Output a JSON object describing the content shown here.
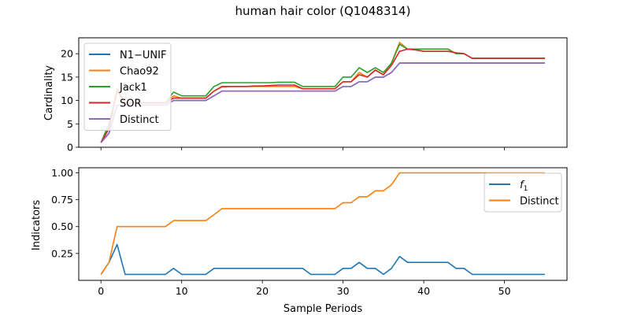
{
  "figure": {
    "title": "human hair color (Q1048314)"
  },
  "chart_data": [
    {
      "type": "line",
      "ylabel": "Cardinality",
      "xlabel": "",
      "xlim": [
        -2.75,
        57.75
      ],
      "ylim": [
        0,
        23.4
      ],
      "xticks": [
        0,
        10,
        20,
        30,
        40,
        50
      ],
      "yticks": [
        0,
        5,
        10,
        15,
        20
      ],
      "legend_position": "upper-left",
      "x": [
        0,
        1,
        2,
        3,
        4,
        5,
        6,
        7,
        8,
        9,
        10,
        11,
        12,
        13,
        14,
        15,
        16,
        17,
        18,
        19,
        20,
        21,
        22,
        23,
        24,
        25,
        26,
        27,
        28,
        29,
        30,
        31,
        32,
        33,
        34,
        35,
        36,
        37,
        38,
        39,
        40,
        41,
        42,
        43,
        44,
        45,
        46,
        47,
        48,
        49,
        50,
        51,
        52,
        53,
        54,
        55
      ],
      "series": [
        {
          "name": "N1−UNIF",
          "color": "#1f77b4",
          "values": [
            1,
            3,
            9,
            9,
            9,
            9,
            9,
            9,
            9,
            10,
            10,
            10,
            10,
            10,
            11,
            12,
            12,
            12,
            12,
            12,
            12,
            12,
            12,
            12,
            12,
            12,
            12,
            12,
            12,
            12,
            13,
            13,
            14,
            14,
            15,
            15,
            16,
            18,
            18,
            18,
            18,
            18,
            18,
            18,
            18,
            18,
            18,
            18,
            18,
            18,
            18,
            18,
            18,
            18,
            18,
            18
          ]
        },
        {
          "name": "Chao92",
          "color": "#ff7f0e",
          "values": [
            1,
            4,
            12.5,
            9.5,
            9.5,
            9.5,
            9.5,
            9.5,
            9.5,
            11,
            10.5,
            10.5,
            10.5,
            10.5,
            12,
            12.9,
            13,
            13,
            13,
            13,
            13,
            13,
            13,
            13,
            13,
            12.5,
            12.5,
            12.5,
            12.5,
            12.5,
            14,
            14,
            16,
            15,
            16.5,
            15.5,
            18,
            22.4,
            21,
            21,
            21,
            21,
            21,
            21,
            20,
            20,
            19,
            19,
            19,
            19,
            19,
            19,
            19,
            19,
            19,
            19
          ]
        },
        {
          "name": "Jack1",
          "color": "#2ca02c",
          "values": [
            1,
            5,
            12,
            9.5,
            9.5,
            9.5,
            9.5,
            9.5,
            9.5,
            11.8,
            11,
            11,
            11,
            11,
            13,
            13.8,
            13.8,
            13.8,
            13.8,
            13.8,
            13.8,
            13.8,
            13.9,
            13.9,
            13.9,
            13,
            13,
            13,
            13,
            13,
            15,
            15,
            17,
            16,
            17,
            16,
            18,
            22,
            21,
            21,
            21,
            21,
            21,
            21,
            20,
            20,
            19,
            19,
            19,
            19,
            19,
            19,
            19,
            19,
            19,
            19
          ]
        },
        {
          "name": "SOR",
          "color": "#d62728",
          "values": [
            1,
            4,
            12,
            9.5,
            9.5,
            9.5,
            9.5,
            9.5,
            9.5,
            10.5,
            10.5,
            10.5,
            10.5,
            10.5,
            12,
            13,
            13,
            13,
            13,
            13.1,
            13.1,
            13.2,
            13.3,
            13.3,
            13.3,
            12.5,
            12.5,
            12.5,
            12.5,
            12.5,
            14,
            14,
            15.5,
            15,
            16.5,
            15.5,
            17.5,
            20.5,
            21,
            20.8,
            20.5,
            20.5,
            20.5,
            20.5,
            20.2,
            20,
            19,
            19,
            19,
            19,
            19,
            19,
            19,
            19,
            19,
            19
          ]
        },
        {
          "name": "Distinct",
          "color": "#9467bd",
          "values": [
            1,
            3,
            9,
            9,
            9,
            9,
            9,
            9,
            9,
            10,
            10,
            10,
            10,
            10,
            11,
            12,
            12,
            12,
            12,
            12,
            12,
            12,
            12,
            12,
            12,
            12,
            12,
            12,
            12,
            12,
            13,
            13,
            14,
            14,
            15,
            15,
            16,
            18,
            18,
            18,
            18,
            18,
            18,
            18,
            18,
            18,
            18,
            18,
            18,
            18,
            18,
            18,
            18,
            18,
            18,
            18
          ]
        }
      ]
    },
    {
      "type": "line",
      "ylabel": "Indicators",
      "xlabel": "Sample Periods",
      "xlim": [
        -2.75,
        57.75
      ],
      "ylim": [
        0.0,
        1.0475
      ],
      "xticks": [
        0,
        10,
        20,
        30,
        40,
        50
      ],
      "yticks": [
        0.25,
        0.5,
        0.75,
        1.0
      ],
      "ytick_labels": [
        "0.25",
        "0.50",
        "0.75",
        "1.00"
      ],
      "legend_position": "upper-right",
      "x": [
        0,
        1,
        2,
        3,
        4,
        5,
        6,
        7,
        8,
        9,
        10,
        11,
        12,
        13,
        14,
        15,
        16,
        17,
        18,
        19,
        20,
        21,
        22,
        23,
        24,
        25,
        26,
        27,
        28,
        29,
        30,
        31,
        32,
        33,
        34,
        35,
        36,
        37,
        38,
        39,
        40,
        41,
        42,
        43,
        44,
        45,
        46,
        47,
        48,
        49,
        50,
        51,
        52,
        53,
        54,
        55
      ],
      "series": [
        {
          "name": "f1",
          "color": "#1f77b4",
          "values": [
            0.056,
            0.167,
            0.333,
            0.056,
            0.056,
            0.056,
            0.056,
            0.056,
            0.056,
            0.111,
            0.056,
            0.056,
            0.056,
            0.056,
            0.111,
            0.111,
            0.111,
            0.111,
            0.111,
            0.111,
            0.111,
            0.111,
            0.111,
            0.111,
            0.111,
            0.111,
            0.056,
            0.056,
            0.056,
            0.056,
            0.111,
            0.111,
            0.167,
            0.111,
            0.111,
            0.056,
            0.111,
            0.222,
            0.167,
            0.167,
            0.167,
            0.167,
            0.167,
            0.167,
            0.111,
            0.111,
            0.056,
            0.056,
            0.056,
            0.056,
            0.056,
            0.056,
            0.056,
            0.056,
            0.056,
            0.056
          ]
        },
        {
          "name": "Distinct",
          "color": "#ff7f0e",
          "values": [
            0.056,
            0.167,
            0.5,
            0.5,
            0.5,
            0.5,
            0.5,
            0.5,
            0.5,
            0.556,
            0.556,
            0.556,
            0.556,
            0.556,
            0.611,
            0.667,
            0.667,
            0.667,
            0.667,
            0.667,
            0.667,
            0.667,
            0.667,
            0.667,
            0.667,
            0.667,
            0.667,
            0.667,
            0.667,
            0.667,
            0.722,
            0.722,
            0.778,
            0.778,
            0.833,
            0.833,
            0.889,
            1.0,
            1.0,
            1.0,
            1.0,
            1.0,
            1.0,
            1.0,
            1.0,
            1.0,
            1.0,
            1.0,
            1.0,
            1.0,
            1.0,
            1.0,
            1.0,
            1.0,
            1.0,
            1.0
          ]
        }
      ]
    }
  ]
}
